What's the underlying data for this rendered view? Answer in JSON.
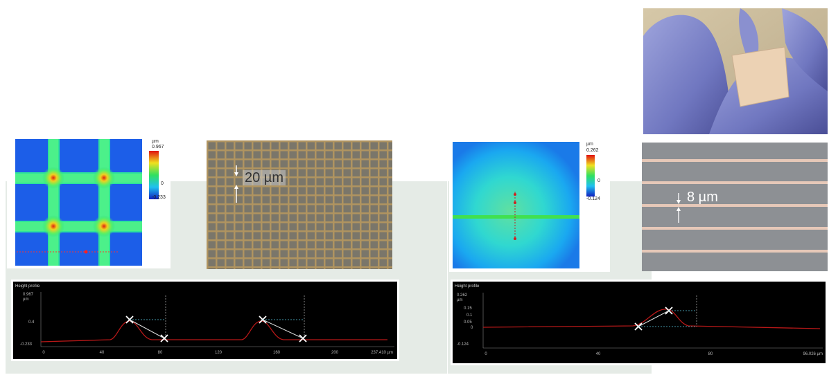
{
  "left_group": {
    "heightmap": {
      "scale_unit": "µm",
      "scale_max": "0.967",
      "scale_mid": "0",
      "scale_min": "-0.233"
    },
    "micrograph": {
      "scale_label": "20 µm"
    },
    "profile": {
      "title": "Height profile",
      "y_unit": "µm",
      "y_ticks": [
        "0.967",
        "0.4",
        "-0.233"
      ],
      "x_ticks": [
        "0",
        "40",
        "80",
        "120",
        "160",
        "200",
        "237.410 µm"
      ]
    }
  },
  "right_group": {
    "heightmap": {
      "scale_unit": "µm",
      "scale_max": "0.262",
      "scale_mid": "0",
      "scale_min": "-0.124"
    },
    "micrograph": {
      "scale_label": "8 µm"
    },
    "profile": {
      "title": "Height profile",
      "y_unit": "µm",
      "y_ticks": [
        "0.262",
        "0.15",
        "0.1",
        "0.05",
        "0",
        "-0.124"
      ],
      "x_ticks": [
        "0",
        "40",
        "80",
        "96.026 µm"
      ]
    }
  },
  "colors": {
    "panel_background": "#e5ebe6",
    "heightmap_low": "#1e5fe6",
    "heightmap_high": "#f0f020",
    "glove": "#7c82c6"
  }
}
